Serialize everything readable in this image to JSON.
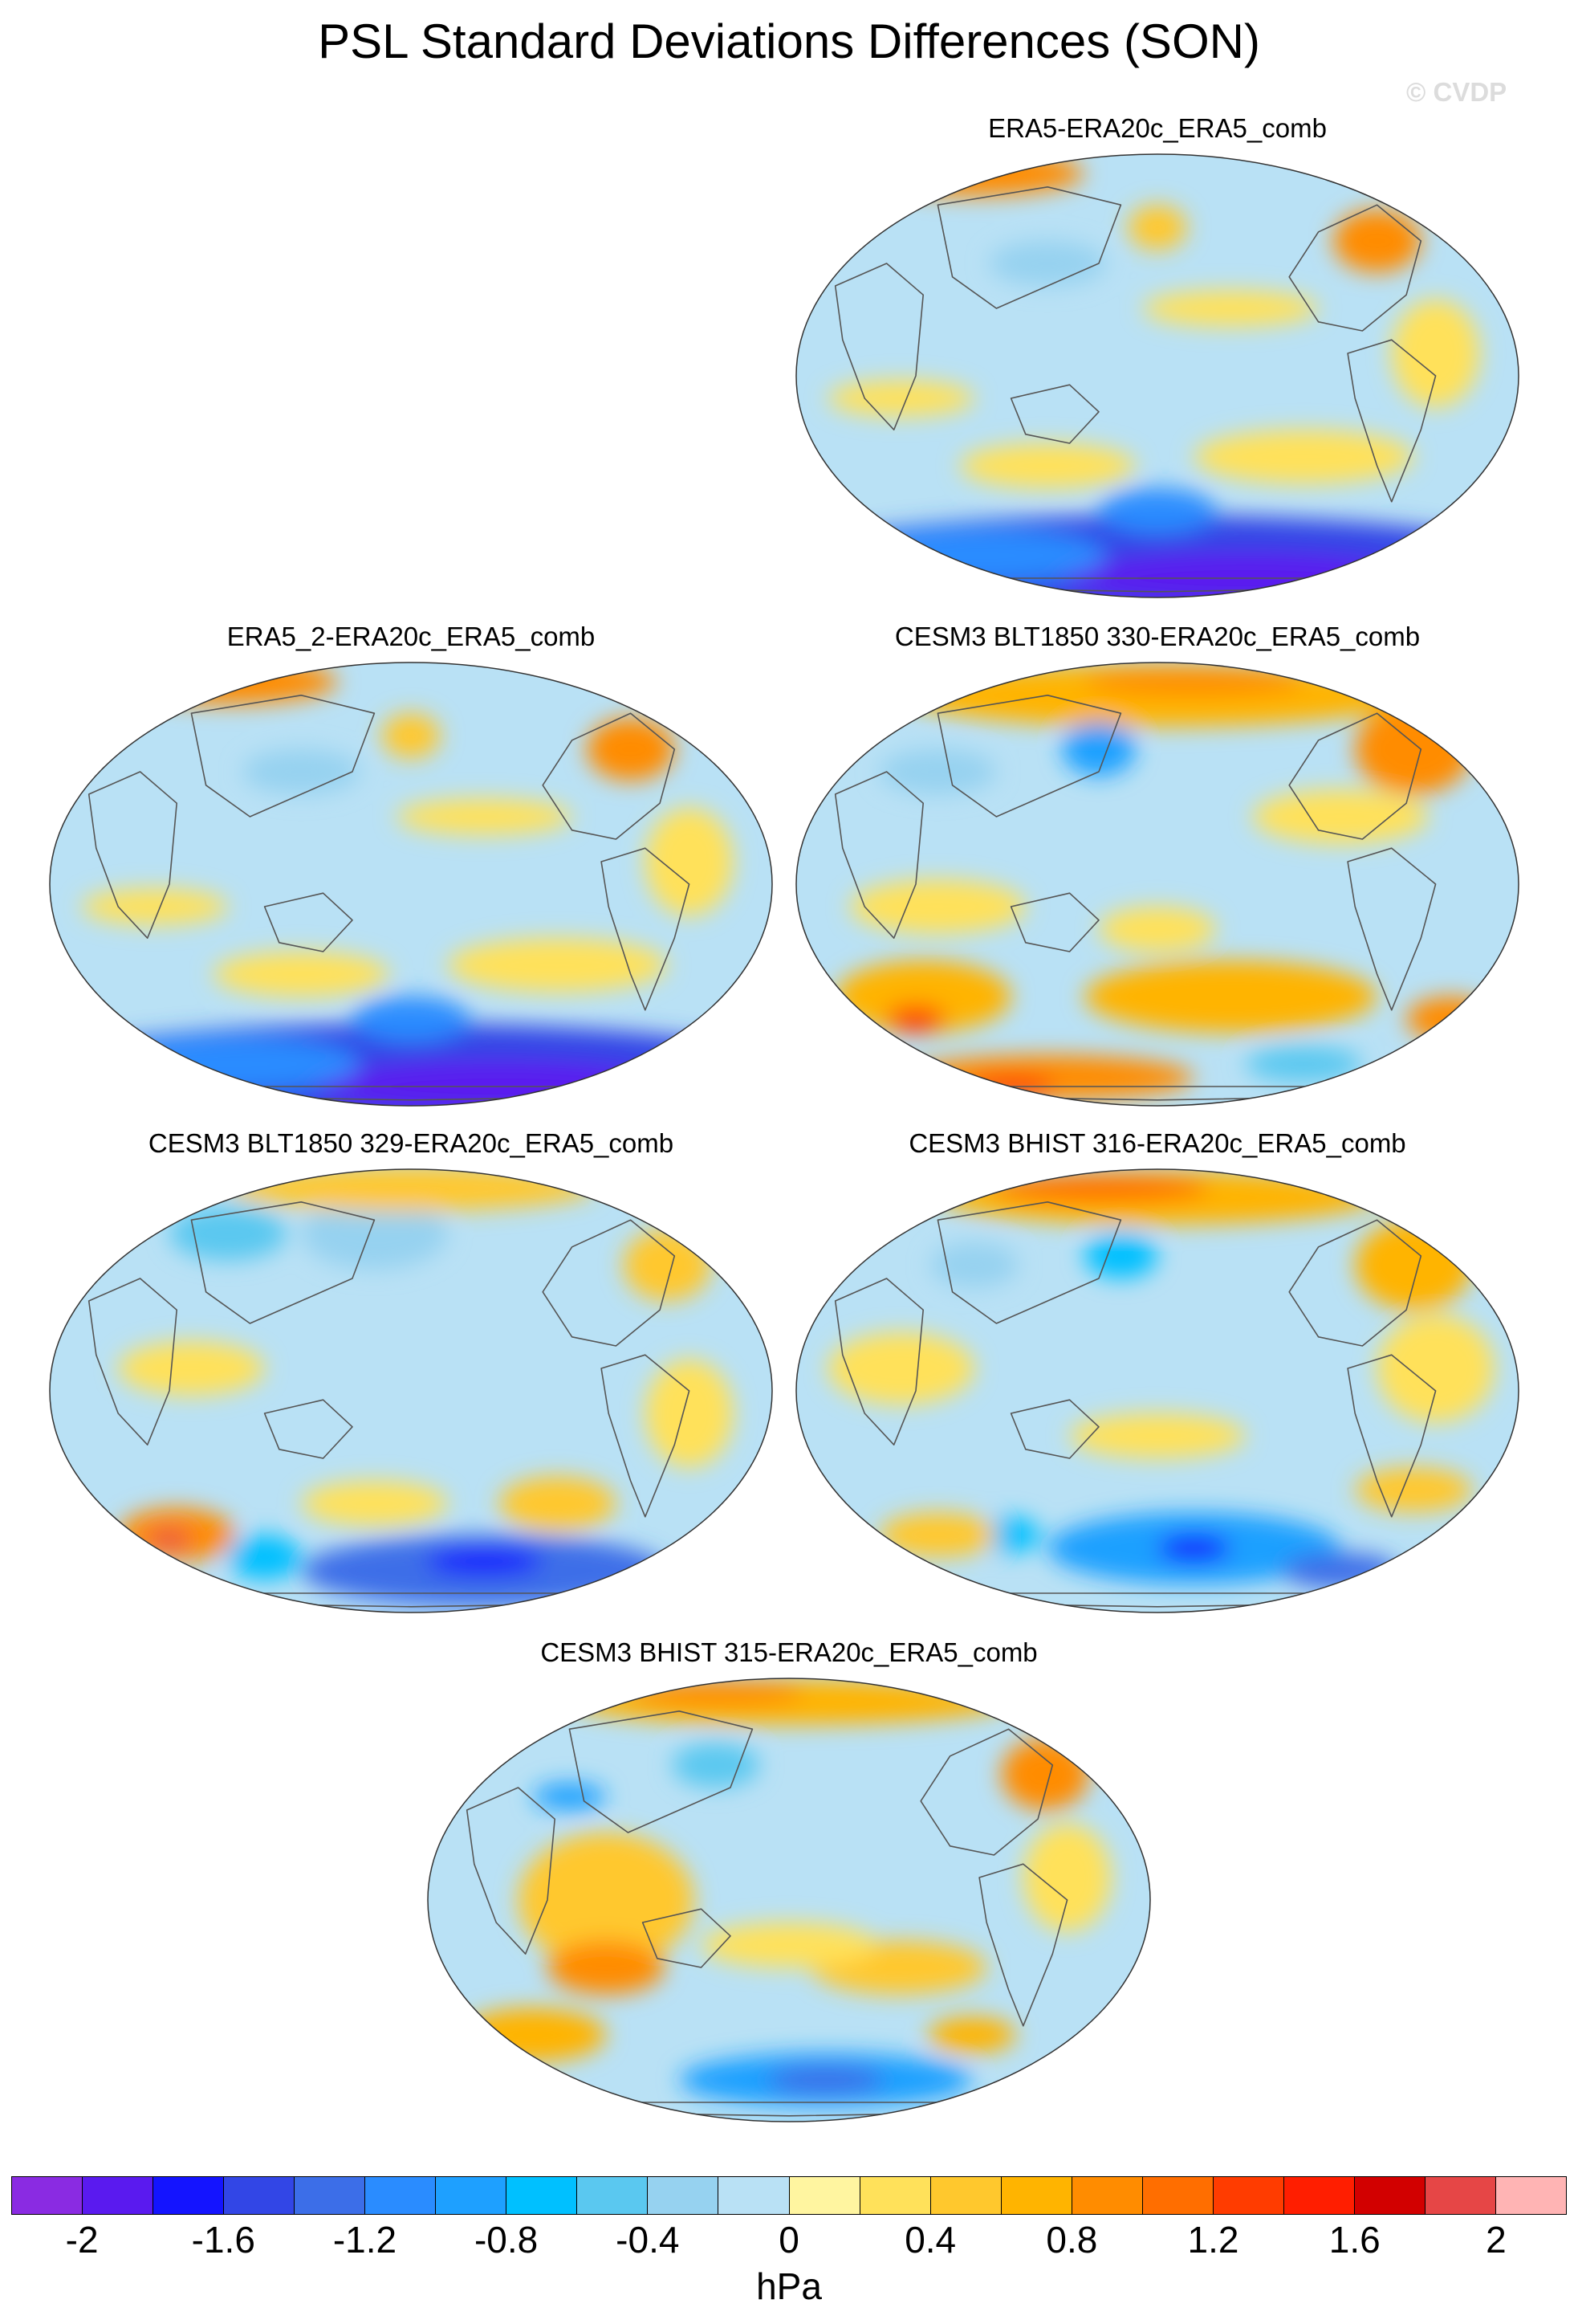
{
  "title": "PSL Standard Deviations Differences (SON)",
  "watermark": "© CVDP",
  "panels": [
    {
      "title": "ERA5-ERA20c_ERA5_comb",
      "pattern": "southern-ocean-negative"
    },
    {
      "title": "ERA5_2-ERA20c_ERA5_comb",
      "pattern": "southern-ocean-negative"
    },
    {
      "title": "CESM3 BLT1850 330-ERA20c_ERA5_comb",
      "pattern": "widespread-positive"
    },
    {
      "title": "CESM3 BLT1850 329-ERA20c_ERA5_comb",
      "pattern": "southern-ocean-negative-indian-positive"
    },
    {
      "title": "CESM3 BHIST 316-ERA20c_ERA5_comb",
      "pattern": "mixed"
    },
    {
      "title": "CESM3 BHIST 315-ERA20c_ERA5_comb",
      "pattern": "mixed-positive"
    }
  ],
  "colorbar": {
    "units": "hPa",
    "levels": [
      -2.2,
      -2.0,
      -1.8,
      -1.6,
      -1.4,
      -1.2,
      -1.0,
      -0.8,
      -0.6,
      -0.4,
      -0.2,
      0,
      0.2,
      0.4,
      0.6,
      0.8,
      1.0,
      1.2,
      1.4,
      1.6,
      1.8,
      2.0,
      2.2
    ],
    "labels": [
      "-2",
      "-1.6",
      "-1.2",
      "-0.8",
      "-0.4",
      "0",
      "0.4",
      "0.8",
      "1.2",
      "1.6",
      "2"
    ],
    "colors": [
      "#8a2be2",
      "#5a1aef",
      "#1414ff",
      "#3246e6",
      "#3c6ee8",
      "#2a8cff",
      "#1ea0ff",
      "#00c0ff",
      "#5ac8f0",
      "#96d2f0",
      "#b9e1f5",
      "#fff5a0",
      "#ffe15a",
      "#ffc82d",
      "#ffb400",
      "#ff8c00",
      "#ff6e00",
      "#ff3c00",
      "#ff1e00",
      "#d20000",
      "#e64646",
      "#ffb4b4"
    ]
  }
}
